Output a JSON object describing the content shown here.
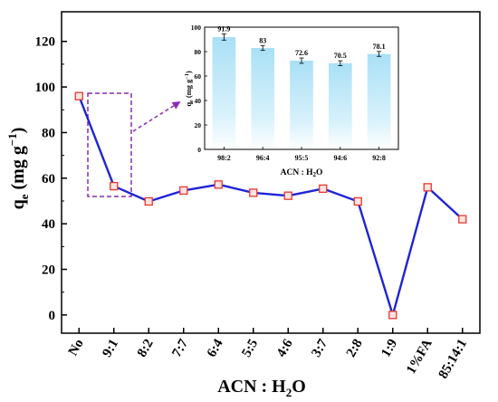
{
  "chart_data": [
    {
      "type": "line",
      "categories": [
        "No",
        "9:1",
        "8:2",
        "7:7",
        "6:4",
        "5:5",
        "4:6",
        "3:7",
        "2:8",
        "1:9",
        "1%FA",
        "85:14:1"
      ],
      "series": [
        {
          "values": [
            96,
            56.5,
            49.8,
            54.6,
            57.2,
            53.6,
            52.3,
            55.4,
            49.8,
            0,
            56,
            42
          ]
        }
      ],
      "y_label_main": "q",
      "y_label_sub": "e",
      "y_label_units": " (mg g",
      "y_label_exp": "−1",
      "y_label_close": ")",
      "x_label_main": "ACN : H",
      "x_label_sub": "2",
      "x_label_end": "O",
      "ylim": [
        -8,
        133
      ],
      "yticks": [
        0,
        20,
        40,
        60,
        80,
        100,
        120
      ],
      "line_color": "#1f24d6",
      "marker_color": "#e8372e",
      "highlight_color": "#8a2bb6"
    },
    {
      "type": "bar",
      "categories": [
        "98:2",
        "96:4",
        "95:5",
        "94:6",
        "92:8"
      ],
      "values": [
        91.9,
        83,
        72.6,
        70.5,
        78.1
      ],
      "data_labels": [
        "91.9",
        "83",
        "72.6",
        "70.5",
        "78.1"
      ],
      "errors": [
        2.5,
        2.0,
        2.2,
        2.0,
        2.0
      ],
      "y_label_main": "q",
      "y_label_sub": "e",
      "y_label_units": " (mg g",
      "y_label_exp": "−1",
      "y_label_close": ")",
      "x_label_main": "ACN : H",
      "x_label_sub": "2",
      "x_label_end": "O",
      "ylim": [
        0,
        100
      ],
      "yticks": [
        0,
        20,
        40,
        60,
        80,
        100
      ],
      "bar_color": "#bfe8f8"
    }
  ]
}
